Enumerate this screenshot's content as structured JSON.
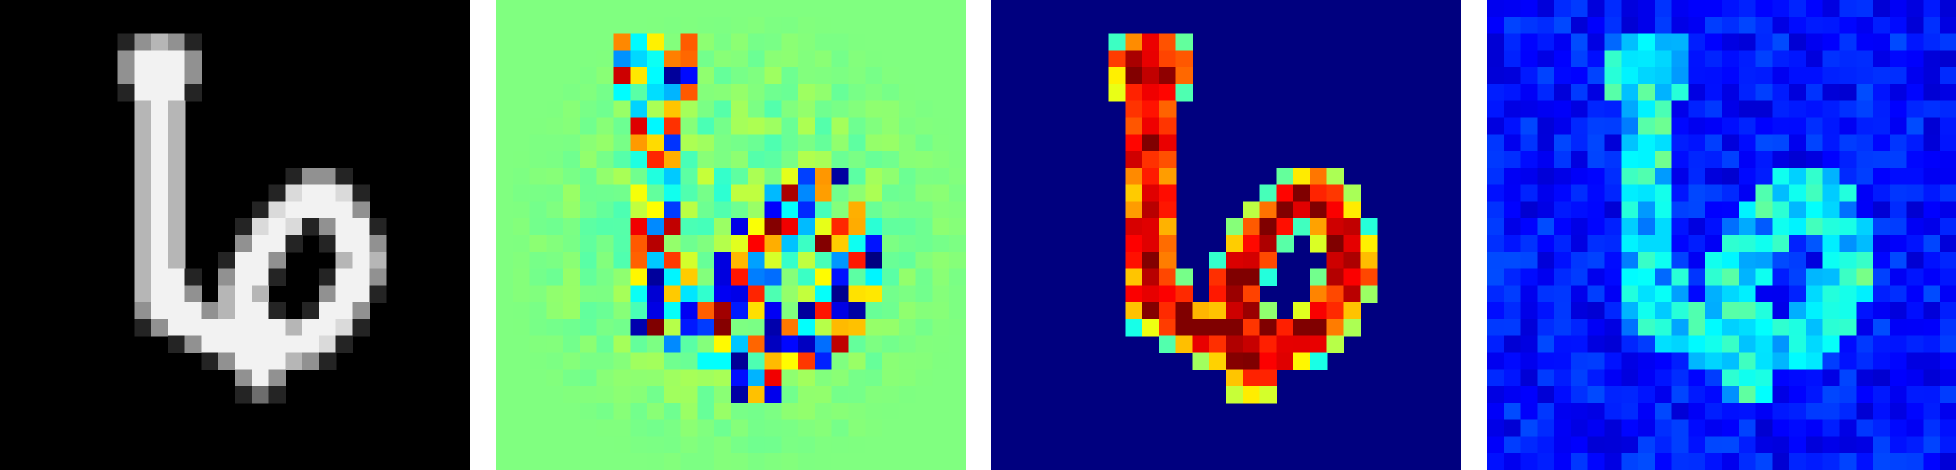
{
  "panels": [
    {
      "name": "input-digit",
      "colormap": "gray",
      "background": "#000000"
    },
    {
      "name": "signed-attribution-map",
      "colormap": "jet",
      "background": "#7fff7f"
    },
    {
      "name": "activation-map",
      "colormap": "jet",
      "background": "#00007f"
    },
    {
      "name": "noise-attribution-map",
      "colormap": "jet",
      "background": "#00007f"
    }
  ]
}
